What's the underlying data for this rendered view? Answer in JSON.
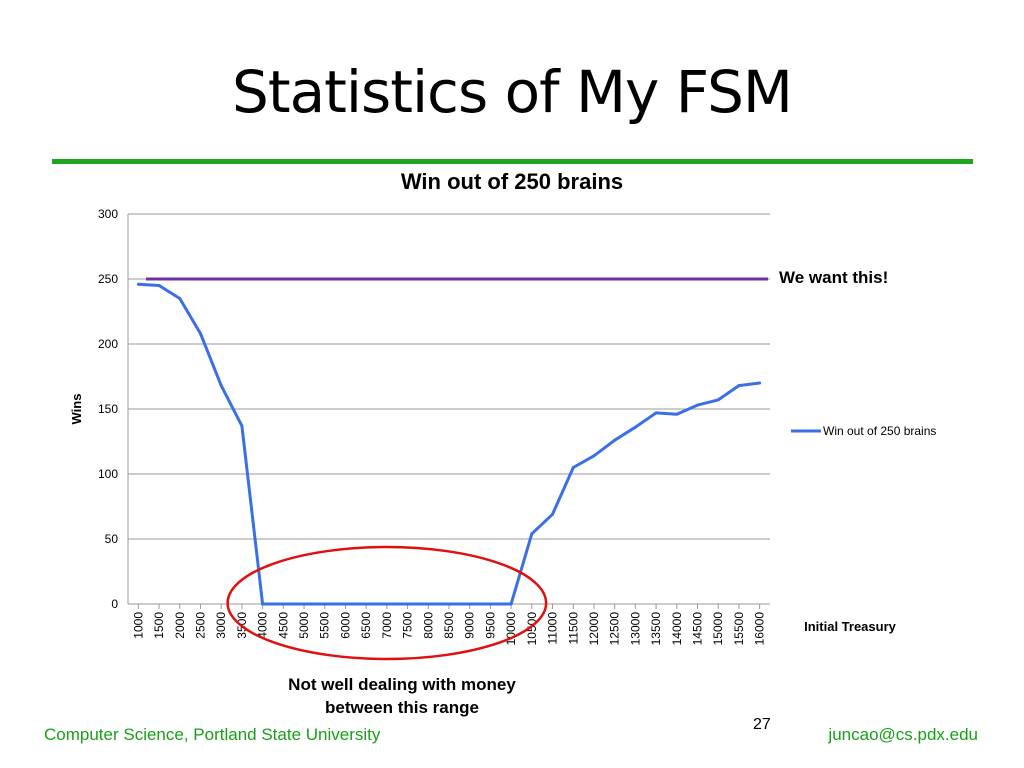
{
  "slide": {
    "title": "Statistics of My FSM",
    "page_number": "27",
    "footer_left": "Computer Science, Portland State University",
    "footer_right": "juncao@cs.pdx.edu",
    "accent_color": "#1fa61f"
  },
  "annotations": {
    "target_label": "We want this!",
    "range_note_line1": "Not well dealing with money",
    "range_note_line2": "between this range"
  },
  "chart_data": {
    "type": "line",
    "title": "Win out of 250 brains",
    "xlabel": "Initial Treasury",
    "ylabel": "Wins",
    "ylim": [
      0,
      300
    ],
    "yticks": [
      0,
      50,
      100,
      150,
      200,
      250,
      300
    ],
    "grid": true,
    "legend_position": "right",
    "categories": [
      "1000",
      "1500",
      "2000",
      "2500",
      "3000",
      "3500",
      "4000",
      "4500",
      "5000",
      "5500",
      "6000",
      "6500",
      "7000",
      "7500",
      "8000",
      "8500",
      "9000",
      "9500",
      "10000",
      "10500",
      "11000",
      "11500",
      "12000",
      "12500",
      "13000",
      "13500",
      "14000",
      "14500",
      "15000",
      "15500",
      "16000"
    ],
    "series": [
      {
        "name": "Win out of 250 brains",
        "color": "#3b6fe6",
        "values": [
          246,
          245,
          235,
          208,
          168,
          137,
          0,
          0,
          0,
          0,
          0,
          0,
          0,
          0,
          0,
          0,
          0,
          0,
          0,
          54,
          69,
          105,
          114,
          126,
          136,
          147,
          146,
          153,
          157,
          168,
          170
        ]
      }
    ],
    "reference_line": {
      "value": 250,
      "color": "#7030a0"
    },
    "highlight_ellipse": {
      "color": "#e01010",
      "x_from": "4000",
      "x_to": "10000"
    }
  }
}
